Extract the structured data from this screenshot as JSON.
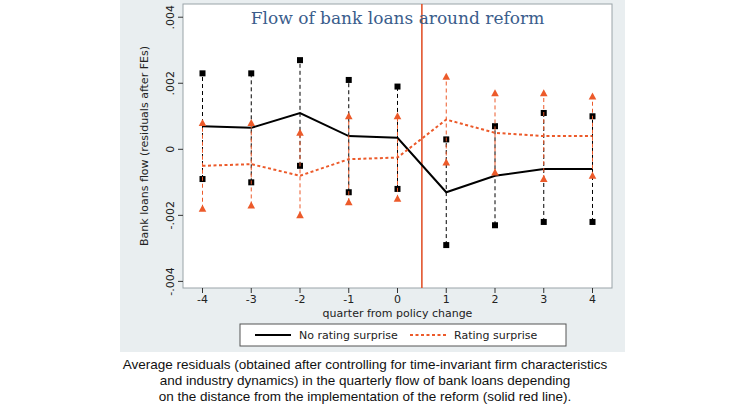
{
  "chart_data": {
    "type": "line",
    "title": "Flow of bank loans around reform",
    "x_label": "quarter from policy change",
    "y_label": "Bank loans flow (residuals after FEs)",
    "caption": [
      "Average residuals (obtained after controlling for time-invariant firm characteristics",
      "and industry dynamics) in the quarterly flow of bank loans depending",
      "on the distance from the implementation of the reform (solid red line)."
    ],
    "x": [
      -4,
      -3,
      -2,
      -1,
      0,
      1,
      2,
      3,
      4
    ],
    "xlim": [
      -4.4,
      4.4
    ],
    "xticks": [
      -4,
      -3,
      -2,
      -1,
      0,
      1,
      2,
      3,
      4
    ],
    "ylim": [
      -0.0042,
      0.0044
    ],
    "yticks": [
      {
        "value": -0.004,
        "label": "-.004"
      },
      {
        "value": -0.002,
        "label": "-.002"
      },
      0,
      {
        "value": 0.002,
        "label": ".002"
      },
      {
        "value": 0.004,
        "label": ".004"
      }
    ],
    "vline": 0.5,
    "legend": "bottom",
    "grid": false,
    "series": [
      {
        "name": "No rating surprise",
        "color": "#000000",
        "line_style": "solid",
        "marker": "square",
        "values": [
          0.0007,
          0.00065,
          0.0011,
          0.0004,
          0.00035,
          -0.0013,
          -0.0008,
          -0.0006,
          -0.0006
        ],
        "lower": [
          -0.0009,
          -0.001,
          -0.0005,
          -0.0013,
          -0.0012,
          -0.0029,
          -0.0023,
          -0.0022,
          -0.0022
        ],
        "upper": [
          0.0023,
          0.0023,
          0.0027,
          0.0021,
          0.0019,
          0.0003,
          0.0007,
          0.0011,
          0.001
        ]
      },
      {
        "name": "Rating surprise",
        "color": "#ec5a2a",
        "line_style": "dash",
        "marker": "triangle",
        "values": [
          -0.0005,
          -0.00045,
          -0.0008,
          -0.0003,
          -0.00025,
          0.0009,
          0.0005,
          0.0004,
          0.0004
        ],
        "lower": [
          -0.0018,
          -0.0017,
          -0.002,
          -0.0016,
          -0.0015,
          -0.0004,
          -0.0007,
          -0.0009,
          -0.0008
        ],
        "upper": [
          0.0008,
          0.0008,
          0.0005,
          0.001,
          0.001,
          0.0022,
          0.0017,
          0.0017,
          0.0016
        ]
      }
    ]
  }
}
